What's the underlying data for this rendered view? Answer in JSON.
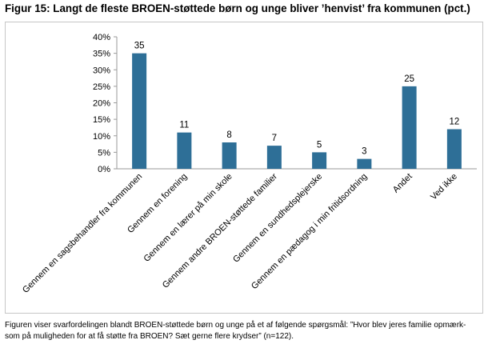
{
  "figure": {
    "title": "Figur 15: Langt de fleste BROEN-støttede børn og unge bliver ’henvist’ fra kommunen (pct.)",
    "footnote_line1": "Figuren viser svarfordelingen blandt BROEN-støttede børn og unge på et af følgende spørgsmål: ”Hvor blev jeres familie opmærk-",
    "footnote_line2": "som på muligheden for at få støtte fra BROEN? Sæt gerne flere krydser” (n=122)."
  },
  "chart_data": {
    "type": "bar",
    "categories": [
      "Gennem en sagsbehandler fra kommunen",
      "Gennem en forening",
      "Gennem en lærer på min skole",
      "Gennem andre BROEN-støttede familier",
      "Gennem en sundhedsplejerske",
      "Gennem en pædagog i min fritidsordning",
      "Andet",
      "Ved ikke"
    ],
    "values": [
      35,
      11,
      8,
      7,
      5,
      3,
      25,
      12
    ],
    "data_labels": [
      "35",
      "11",
      "8",
      "7",
      "5",
      "3",
      "25",
      "12"
    ],
    "ylim": [
      0,
      40
    ],
    "yticks": [
      "0%",
      "5%",
      "10%",
      "15%",
      "20%",
      "25%",
      "30%",
      "35%",
      "40%"
    ],
    "grid": false,
    "legend": "none",
    "bar_color": "#2e6f97"
  }
}
